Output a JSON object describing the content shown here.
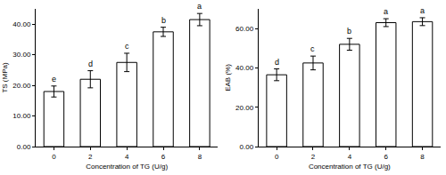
{
  "chart_data": [
    {
      "type": "bar",
      "x_label": "Concentration of TG (U/g)",
      "y_label": "TS (MPa)",
      "categories": [
        "0",
        "2",
        "4",
        "6",
        "8"
      ],
      "values": [
        18.0,
        22.0,
        27.5,
        37.5,
        41.5
      ],
      "errors": [
        1.8,
        2.8,
        3.0,
        1.5,
        2.0
      ],
      "annotations": [
        "e",
        "d",
        "c",
        "b",
        "a"
      ],
      "color": "#ffffff",
      "ylim": [
        0,
        45
      ],
      "yticks": [
        {
          "value": 0,
          "label": "0.00"
        },
        {
          "value": 10,
          "label": "10.00"
        },
        {
          "value": 20,
          "label": "20.00"
        },
        {
          "value": 30,
          "label": "30.00"
        },
        {
          "value": 40,
          "label": "40.00"
        }
      ],
      "grid": false
    },
    {
      "type": "bar",
      "x_label": "Concentration of TG (U/g)",
      "y_label": "EAB (%)",
      "categories": [
        "0",
        "2",
        "4",
        "6",
        "8"
      ],
      "values": [
        36.5,
        42.5,
        52.0,
        63.0,
        63.5
      ],
      "errors": [
        3.0,
        3.5,
        3.0,
        2.0,
        2.0
      ],
      "annotations": [
        "d",
        "c",
        "b",
        "a",
        "a"
      ],
      "color": "#ffffff",
      "ylim": [
        0,
        70
      ],
      "yticks": [
        {
          "value": 0,
          "label": "0.00"
        },
        {
          "value": 20,
          "label": "20.00"
        },
        {
          "value": 40,
          "label": "40.00"
        },
        {
          "value": 60,
          "label": "60.00"
        }
      ],
      "grid": false
    }
  ]
}
